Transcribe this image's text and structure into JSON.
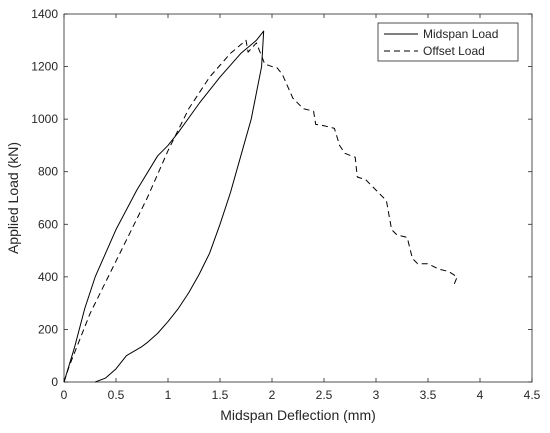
{
  "chart_data": {
    "type": "line",
    "xlabel": "Midspan Deflection (mm)",
    "ylabel": "Applied Load (kN)",
    "xlim": [
      0,
      4.5
    ],
    "ylim": [
      0,
      1400
    ],
    "xticks": [
      0,
      0.5,
      1,
      1.5,
      2,
      2.5,
      3,
      3.5,
      4,
      4.5
    ],
    "xtick_labels": [
      "0",
      "0.5",
      "1",
      "1.5",
      "2",
      "2.5",
      "3",
      "3.5",
      "4",
      "4.5"
    ],
    "yticks": [
      0,
      200,
      400,
      600,
      800,
      1000,
      1200,
      1400
    ],
    "ytick_labels": [
      "0",
      "200",
      "400",
      "600",
      "800",
      "1000",
      "1200",
      "1400"
    ],
    "grid": false,
    "legend_position": "top-right",
    "series": [
      {
        "name": "Midspan Load",
        "style": "solid",
        "color": "#000000",
        "x": [
          0.0,
          0.1,
          0.2,
          0.3,
          0.5,
          0.7,
          0.9,
          1.0,
          1.1,
          1.3,
          1.5,
          1.7,
          1.85,
          1.92,
          1.9,
          1.8,
          1.7,
          1.6,
          1.5,
          1.4,
          1.3,
          1.2,
          1.1,
          1.0,
          0.9,
          0.8,
          0.75,
          0.6,
          0.5,
          0.4,
          0.3
        ],
        "y": [
          0,
          130,
          280,
          400,
          580,
          730,
          860,
          900,
          950,
          1060,
          1160,
          1250,
          1300,
          1335,
          1200,
          1000,
          860,
          720,
          600,
          490,
          410,
          340,
          280,
          230,
          185,
          150,
          135,
          100,
          50,
          15,
          0
        ]
      },
      {
        "name": "Offset Load",
        "style": "dashed",
        "color": "#000000",
        "x": [
          0.0,
          0.05,
          0.15,
          0.25,
          0.4,
          0.6,
          0.8,
          1.0,
          1.1,
          1.2,
          1.4,
          1.6,
          1.75,
          1.77,
          1.85,
          1.93,
          2.0,
          2.05,
          2.1,
          2.2,
          2.3,
          2.4,
          2.42,
          2.5,
          2.6,
          2.65,
          2.7,
          2.8,
          2.82,
          2.9,
          3.0,
          3.1,
          3.15,
          3.2,
          3.3,
          3.35,
          3.4,
          3.5,
          3.6,
          3.7,
          3.78,
          3.75
        ],
        "y": [
          0,
          60,
          160,
          260,
          380,
          540,
          700,
          880,
          960,
          1040,
          1160,
          1250,
          1300,
          1255,
          1290,
          1210,
          1200,
          1195,
          1170,
          1080,
          1040,
          1030,
          980,
          975,
          965,
          900,
          870,
          855,
          780,
          770,
          730,
          690,
          580,
          560,
          550,
          470,
          450,
          450,
          430,
          420,
          400,
          370
        ]
      }
    ]
  }
}
